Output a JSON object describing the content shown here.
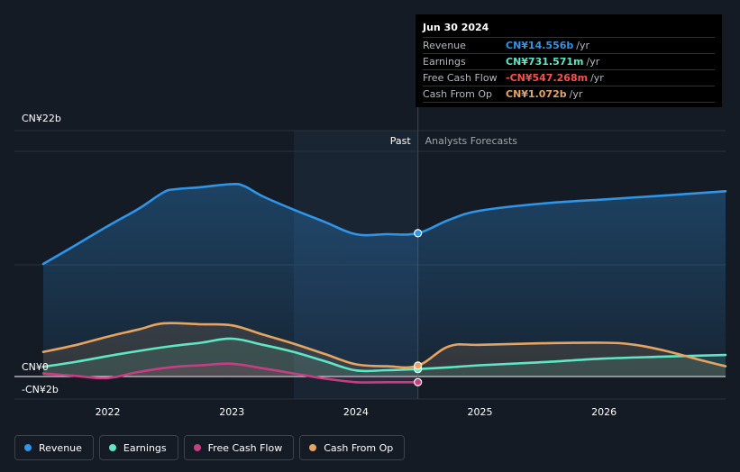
{
  "colors": {
    "background": "#151b24",
    "revenue": "#2f95e8",
    "earnings": "#5fe6c4",
    "free_cash_flow": "#c73d83",
    "cash_from_op": "#e6a460",
    "fcf_value_text": "#ff4d4d"
  },
  "tooltip": {
    "date": "Jun 30 2024",
    "rows": [
      {
        "label": "Revenue",
        "value": "CN¥14.556b",
        "unit": "/yr"
      },
      {
        "label": "Earnings",
        "value": "CN¥731.571m",
        "unit": "/yr"
      },
      {
        "label": "Free Cash Flow",
        "value": "-CN¥547.268m",
        "unit": "/yr"
      },
      {
        "label": "Cash From Op",
        "value": "CN¥1.072b",
        "unit": "/yr"
      }
    ]
  },
  "legend": [
    {
      "label": "Revenue",
      "icon": "revenue-dot"
    },
    {
      "label": "Earnings",
      "icon": "earnings-dot"
    },
    {
      "label": "Free Cash Flow",
      "icon": "free-cash-flow-dot"
    },
    {
      "label": "Cash From Op",
      "icon": "cash-from-op-dot"
    }
  ],
  "chart_data": {
    "type": "area",
    "y_labels": [
      "CN¥22b",
      "CN¥0",
      "-CN¥2b"
    ],
    "ylim": [
      -2,
      22
    ],
    "xlim": [
      2021.48,
      2026.98
    ],
    "x_ticks": [
      2022,
      2023,
      2024,
      2025,
      2026
    ],
    "x_tick_labels": [
      "2022",
      "2023",
      "2024",
      "2025",
      "2026"
    ],
    "past_label": "Past",
    "forecast_label": "Analysts Forecasts",
    "past_region": [
      2023.5,
      2024.5
    ],
    "divider_x": 2024.5,
    "grid": true,
    "series": [
      {
        "name": "Revenue",
        "values": [
          [
            2021.48,
            11.0
          ],
          [
            2021.75,
            12.9
          ],
          [
            2022.0,
            14.7
          ],
          [
            2022.25,
            16.4
          ],
          [
            2022.45,
            18.0
          ],
          [
            2022.55,
            18.3
          ],
          [
            2022.75,
            18.5
          ],
          [
            2023.0,
            18.8
          ],
          [
            2023.1,
            18.6
          ],
          [
            2023.25,
            17.6
          ],
          [
            2023.5,
            16.3
          ],
          [
            2023.75,
            15.1
          ],
          [
            2024.0,
            13.9
          ],
          [
            2024.25,
            13.9
          ],
          [
            2024.5,
            14.0
          ],
          [
            2024.75,
            15.3
          ],
          [
            2025.0,
            16.2
          ],
          [
            2025.5,
            16.9
          ],
          [
            2026.0,
            17.3
          ],
          [
            2026.5,
            17.7
          ],
          [
            2026.98,
            18.1
          ]
        ]
      },
      {
        "name": "Earnings",
        "values": [
          [
            2021.48,
            0.95
          ],
          [
            2021.75,
            1.45
          ],
          [
            2022.0,
            2.0
          ],
          [
            2022.25,
            2.5
          ],
          [
            2022.5,
            2.95
          ],
          [
            2022.75,
            3.3
          ],
          [
            2023.0,
            3.7
          ],
          [
            2023.25,
            3.1
          ],
          [
            2023.5,
            2.4
          ],
          [
            2023.75,
            1.5
          ],
          [
            2024.0,
            0.6
          ],
          [
            2024.25,
            0.62
          ],
          [
            2024.5,
            0.73
          ],
          [
            2024.75,
            0.9
          ],
          [
            2025.0,
            1.1
          ],
          [
            2025.5,
            1.4
          ],
          [
            2026.0,
            1.75
          ],
          [
            2026.5,
            1.95
          ],
          [
            2026.98,
            2.1
          ]
        ]
      },
      {
        "name": "Free Cash Flow",
        "values": [
          [
            2021.48,
            0.3
          ],
          [
            2021.75,
            0.05
          ],
          [
            2022.0,
            -0.15
          ],
          [
            2022.25,
            0.45
          ],
          [
            2022.5,
            0.9
          ],
          [
            2022.75,
            1.1
          ],
          [
            2023.0,
            1.25
          ],
          [
            2023.25,
            0.8
          ],
          [
            2023.5,
            0.3
          ],
          [
            2023.75,
            -0.2
          ],
          [
            2024.0,
            -0.55
          ],
          [
            2024.25,
            -0.55
          ],
          [
            2024.5,
            -0.55
          ]
        ]
      },
      {
        "name": "Cash From Op",
        "values": [
          [
            2021.48,
            2.4
          ],
          [
            2021.75,
            3.1
          ],
          [
            2022.0,
            3.9
          ],
          [
            2022.25,
            4.6
          ],
          [
            2022.45,
            5.2
          ],
          [
            2022.75,
            5.1
          ],
          [
            2023.0,
            5.0
          ],
          [
            2023.25,
            4.1
          ],
          [
            2023.5,
            3.2
          ],
          [
            2023.75,
            2.2
          ],
          [
            2024.0,
            1.2
          ],
          [
            2024.25,
            1.0
          ],
          [
            2024.5,
            1.07
          ],
          [
            2024.75,
            2.95
          ],
          [
            2025.0,
            3.1
          ],
          [
            2025.5,
            3.25
          ],
          [
            2026.0,
            3.3
          ],
          [
            2026.25,
            3.1
          ],
          [
            2026.5,
            2.5
          ],
          [
            2026.75,
            1.7
          ],
          [
            2026.98,
            1.0
          ]
        ]
      }
    ]
  }
}
